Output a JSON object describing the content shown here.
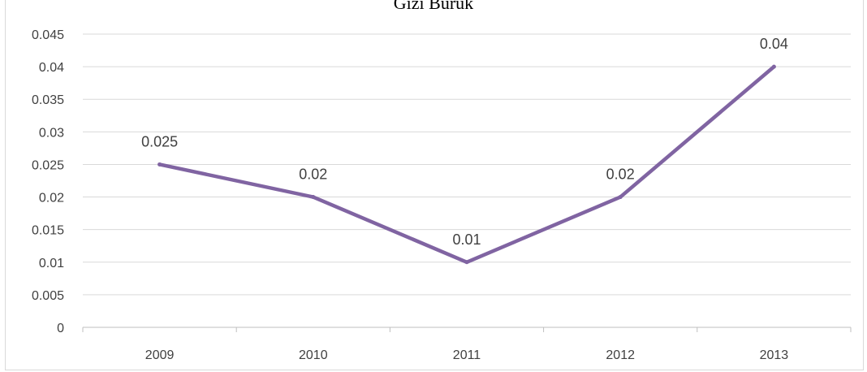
{
  "colors": {
    "series_line": "#8064a2",
    "gridline": "#d9d9d9",
    "axis": "#bfbfbf",
    "text": "#404040"
  },
  "chart_data": {
    "type": "line",
    "title": "Gizi Buruk",
    "xlabel": "",
    "ylabel": "",
    "categories": [
      "2009",
      "2010",
      "2011",
      "2012",
      "2013"
    ],
    "series": [
      {
        "values": [
          0.025,
          0.02,
          0.01,
          0.02,
          0.04
        ],
        "data_labels": [
          "0.025",
          "0.02",
          "0.01",
          "0.02",
          "0.04"
        ]
      }
    ],
    "ylim": [
      0,
      0.045
    ],
    "y_ticks": [
      "0",
      "0.005",
      "0.01",
      "0.015",
      "0.02",
      "0.025",
      "0.03",
      "0.035",
      "0.04",
      "0.045"
    ],
    "grid": true,
    "legend": "none"
  }
}
